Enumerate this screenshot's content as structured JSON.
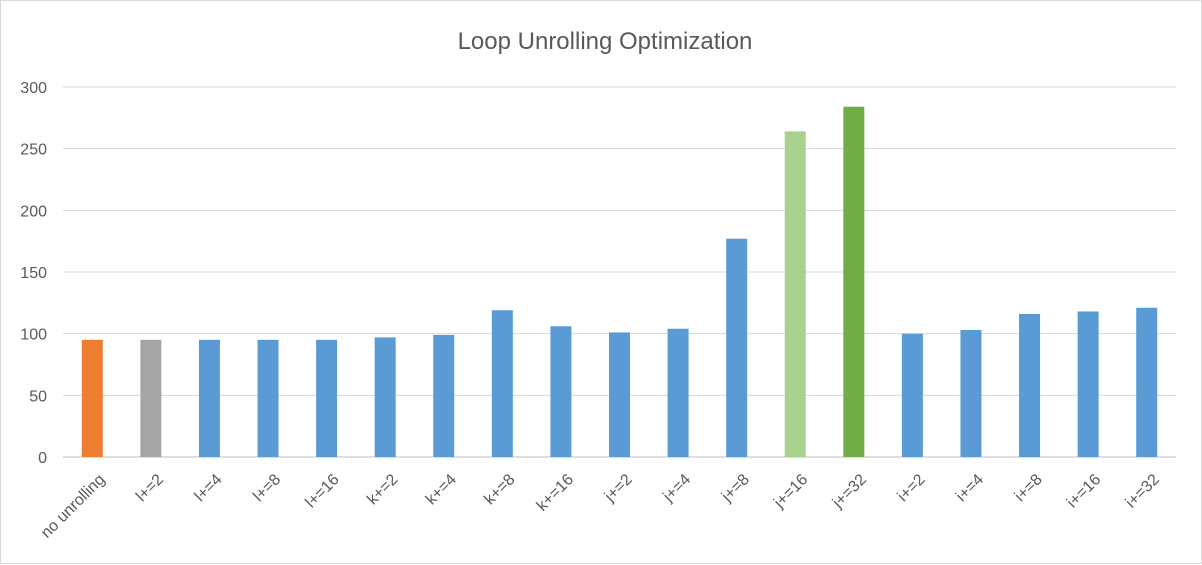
{
  "chart_data": {
    "type": "bar",
    "title": "Loop Unrolling Optimization",
    "xlabel": "",
    "ylabel": "",
    "ylim": [
      0,
      300
    ],
    "yticks": [
      0,
      50,
      100,
      150,
      200,
      250,
      300
    ],
    "grid": true,
    "legend": "none",
    "categories": [
      "no unrolling",
      "l+=2",
      "l+=4",
      "l+=8",
      "l+=16",
      "k+=2",
      "k+=4",
      "k+=8",
      "k+=16",
      "j+=2",
      "j+=4",
      "j+=8",
      "j+=16",
      "j+=32",
      "i+=2",
      "i+=4",
      "i+=8",
      "i+=16",
      "i+=32"
    ],
    "values": [
      95,
      95,
      95,
      95,
      95,
      97,
      99,
      119,
      106,
      101,
      104,
      177,
      264,
      284,
      100,
      103,
      116,
      118,
      121
    ],
    "colors": [
      "#ed7d31",
      "#a5a5a5",
      "#5b9bd5",
      "#5b9bd5",
      "#5b9bd5",
      "#5b9bd5",
      "#5b9bd5",
      "#5b9bd5",
      "#5b9bd5",
      "#5b9bd5",
      "#5b9bd5",
      "#5b9bd5",
      "#a9d18e",
      "#70ad47",
      "#5b9bd5",
      "#5b9bd5",
      "#5b9bd5",
      "#5b9bd5",
      "#5b9bd5"
    ]
  }
}
